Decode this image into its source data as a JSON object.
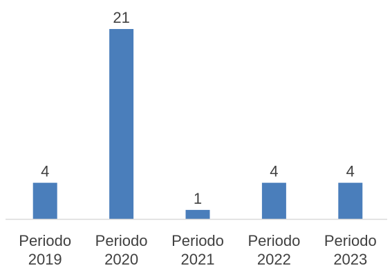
{
  "chart_data": {
    "type": "bar",
    "categories": [
      [
        "Periodo",
        "2019"
      ],
      [
        "Periodo",
        "2020"
      ],
      [
        "Periodo",
        "2021"
      ],
      [
        "Periodo",
        "2022"
      ],
      [
        "Periodo",
        "2023"
      ]
    ],
    "values": [
      4,
      21,
      1,
      4,
      4
    ],
    "data_labels": [
      "4",
      "21",
      "1",
      "4",
      "4"
    ],
    "title": "",
    "xlabel": "",
    "ylabel": "",
    "ylim": [
      0,
      21
    ],
    "grid": false,
    "legend": "none",
    "bar_color": "#4a7ebb",
    "axis_color": "#d9d9d9",
    "text_color": "#404040"
  }
}
